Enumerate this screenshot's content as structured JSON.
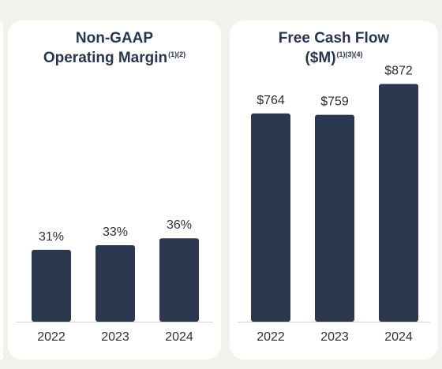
{
  "chart_data": [
    {
      "type": "bar",
      "title": "Non-GAAP Operating Margin",
      "title_lines": [
        "Non-GAAP",
        "Operating Margin"
      ],
      "footnote_marks": "(1)(2)",
      "categories": [
        "2022",
        "2023",
        "2024"
      ],
      "values": [
        31,
        33,
        36
      ],
      "value_labels": [
        "31%",
        "33%",
        "36%"
      ],
      "ylim": [
        0,
        130
      ],
      "bar_color": "#2b3850"
    },
    {
      "type": "bar",
      "title": "Free Cash Flow ($M)",
      "title_lines": [
        "Free Cash Flow",
        "($M)"
      ],
      "footnote_marks": "(1)(3)(4)",
      "categories": [
        "2022",
        "2023",
        "2024"
      ],
      "values": [
        764,
        759,
        872
      ],
      "value_labels": [
        "$764",
        "$759",
        "$872"
      ],
      "ylim": [
        0,
        1105
      ],
      "bar_color": "#2b3850"
    }
  ]
}
